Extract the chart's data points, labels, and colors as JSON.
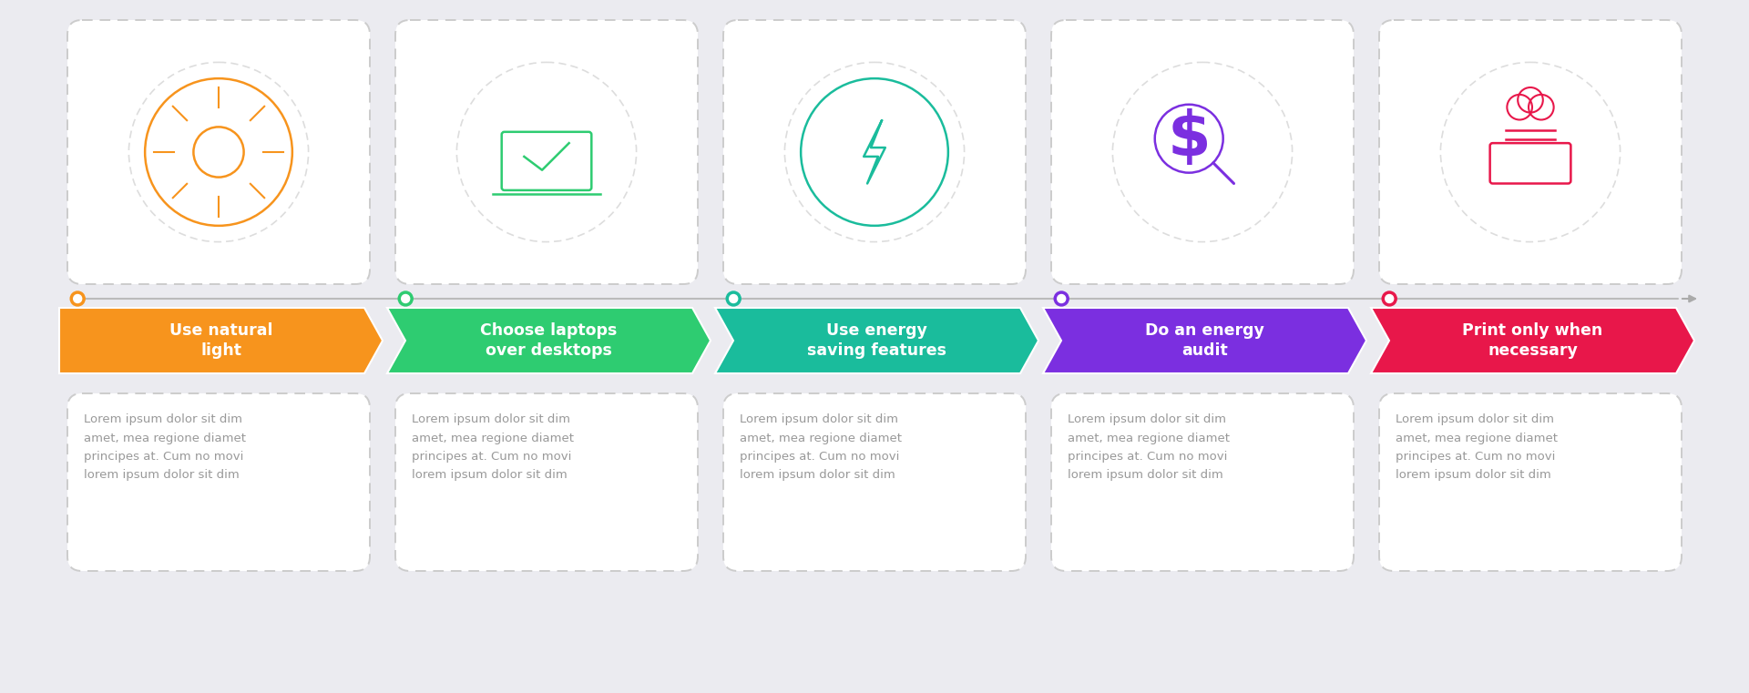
{
  "background_color": "#ebebf0",
  "steps": [
    {
      "title": "Use natural\nlight",
      "color": "#F7941D",
      "dot_color": "#F7941D",
      "icon_color": "#F7941D",
      "text": "Lorem ipsum dolor sit dim\namet, mea regione diamet\nprincipes at. Cum no movi\nlorem ipsum dolor sit dim"
    },
    {
      "title": "Choose laptops\nover desktops",
      "color": "#2ECC71",
      "dot_color": "#27AE60",
      "icon_color": "#2ECC71",
      "text": "Lorem ipsum dolor sit dim\namet, mea regione diamet\nprincipes at. Cum no movi\nlorem ipsum dolor sit dim"
    },
    {
      "title": "Use energy\nsaving features",
      "color": "#1ABC9C",
      "dot_color": "#16A085",
      "icon_color": "#1ABC9C",
      "text": "Lorem ipsum dolor sit dim\namet, mea regione diamet\nprincipes at. Cum no movi\nlorem ipsum dolor sit dim"
    },
    {
      "title": "Do an energy\naudit",
      "color": "#7B2FE0",
      "dot_color": "#7B2FE0",
      "icon_color": "#7B2FE0",
      "text": "Lorem ipsum dolor sit dim\namet, mea regione diamet\nprincipes at. Cum no movi\nlorem ipsum dolor sit dim"
    },
    {
      "title": "Print only when\nnecessary",
      "color": "#E8174A",
      "dot_color": "#E8174A",
      "icon_color": "#C0397B",
      "text": "Lorem ipsum dolor sit dim\namet, mea regione diamet\nprincipes at. Cum no movi\nlorem ipsum dolor sit dim"
    }
  ],
  "title_fontsize": 12.5,
  "body_fontsize": 9.5,
  "text_color": "#999999",
  "white": "#ffffff",
  "timeline_color": "#bbbbbb",
  "card_border_color": "#cccccc",
  "card_bg": "#ffffff"
}
